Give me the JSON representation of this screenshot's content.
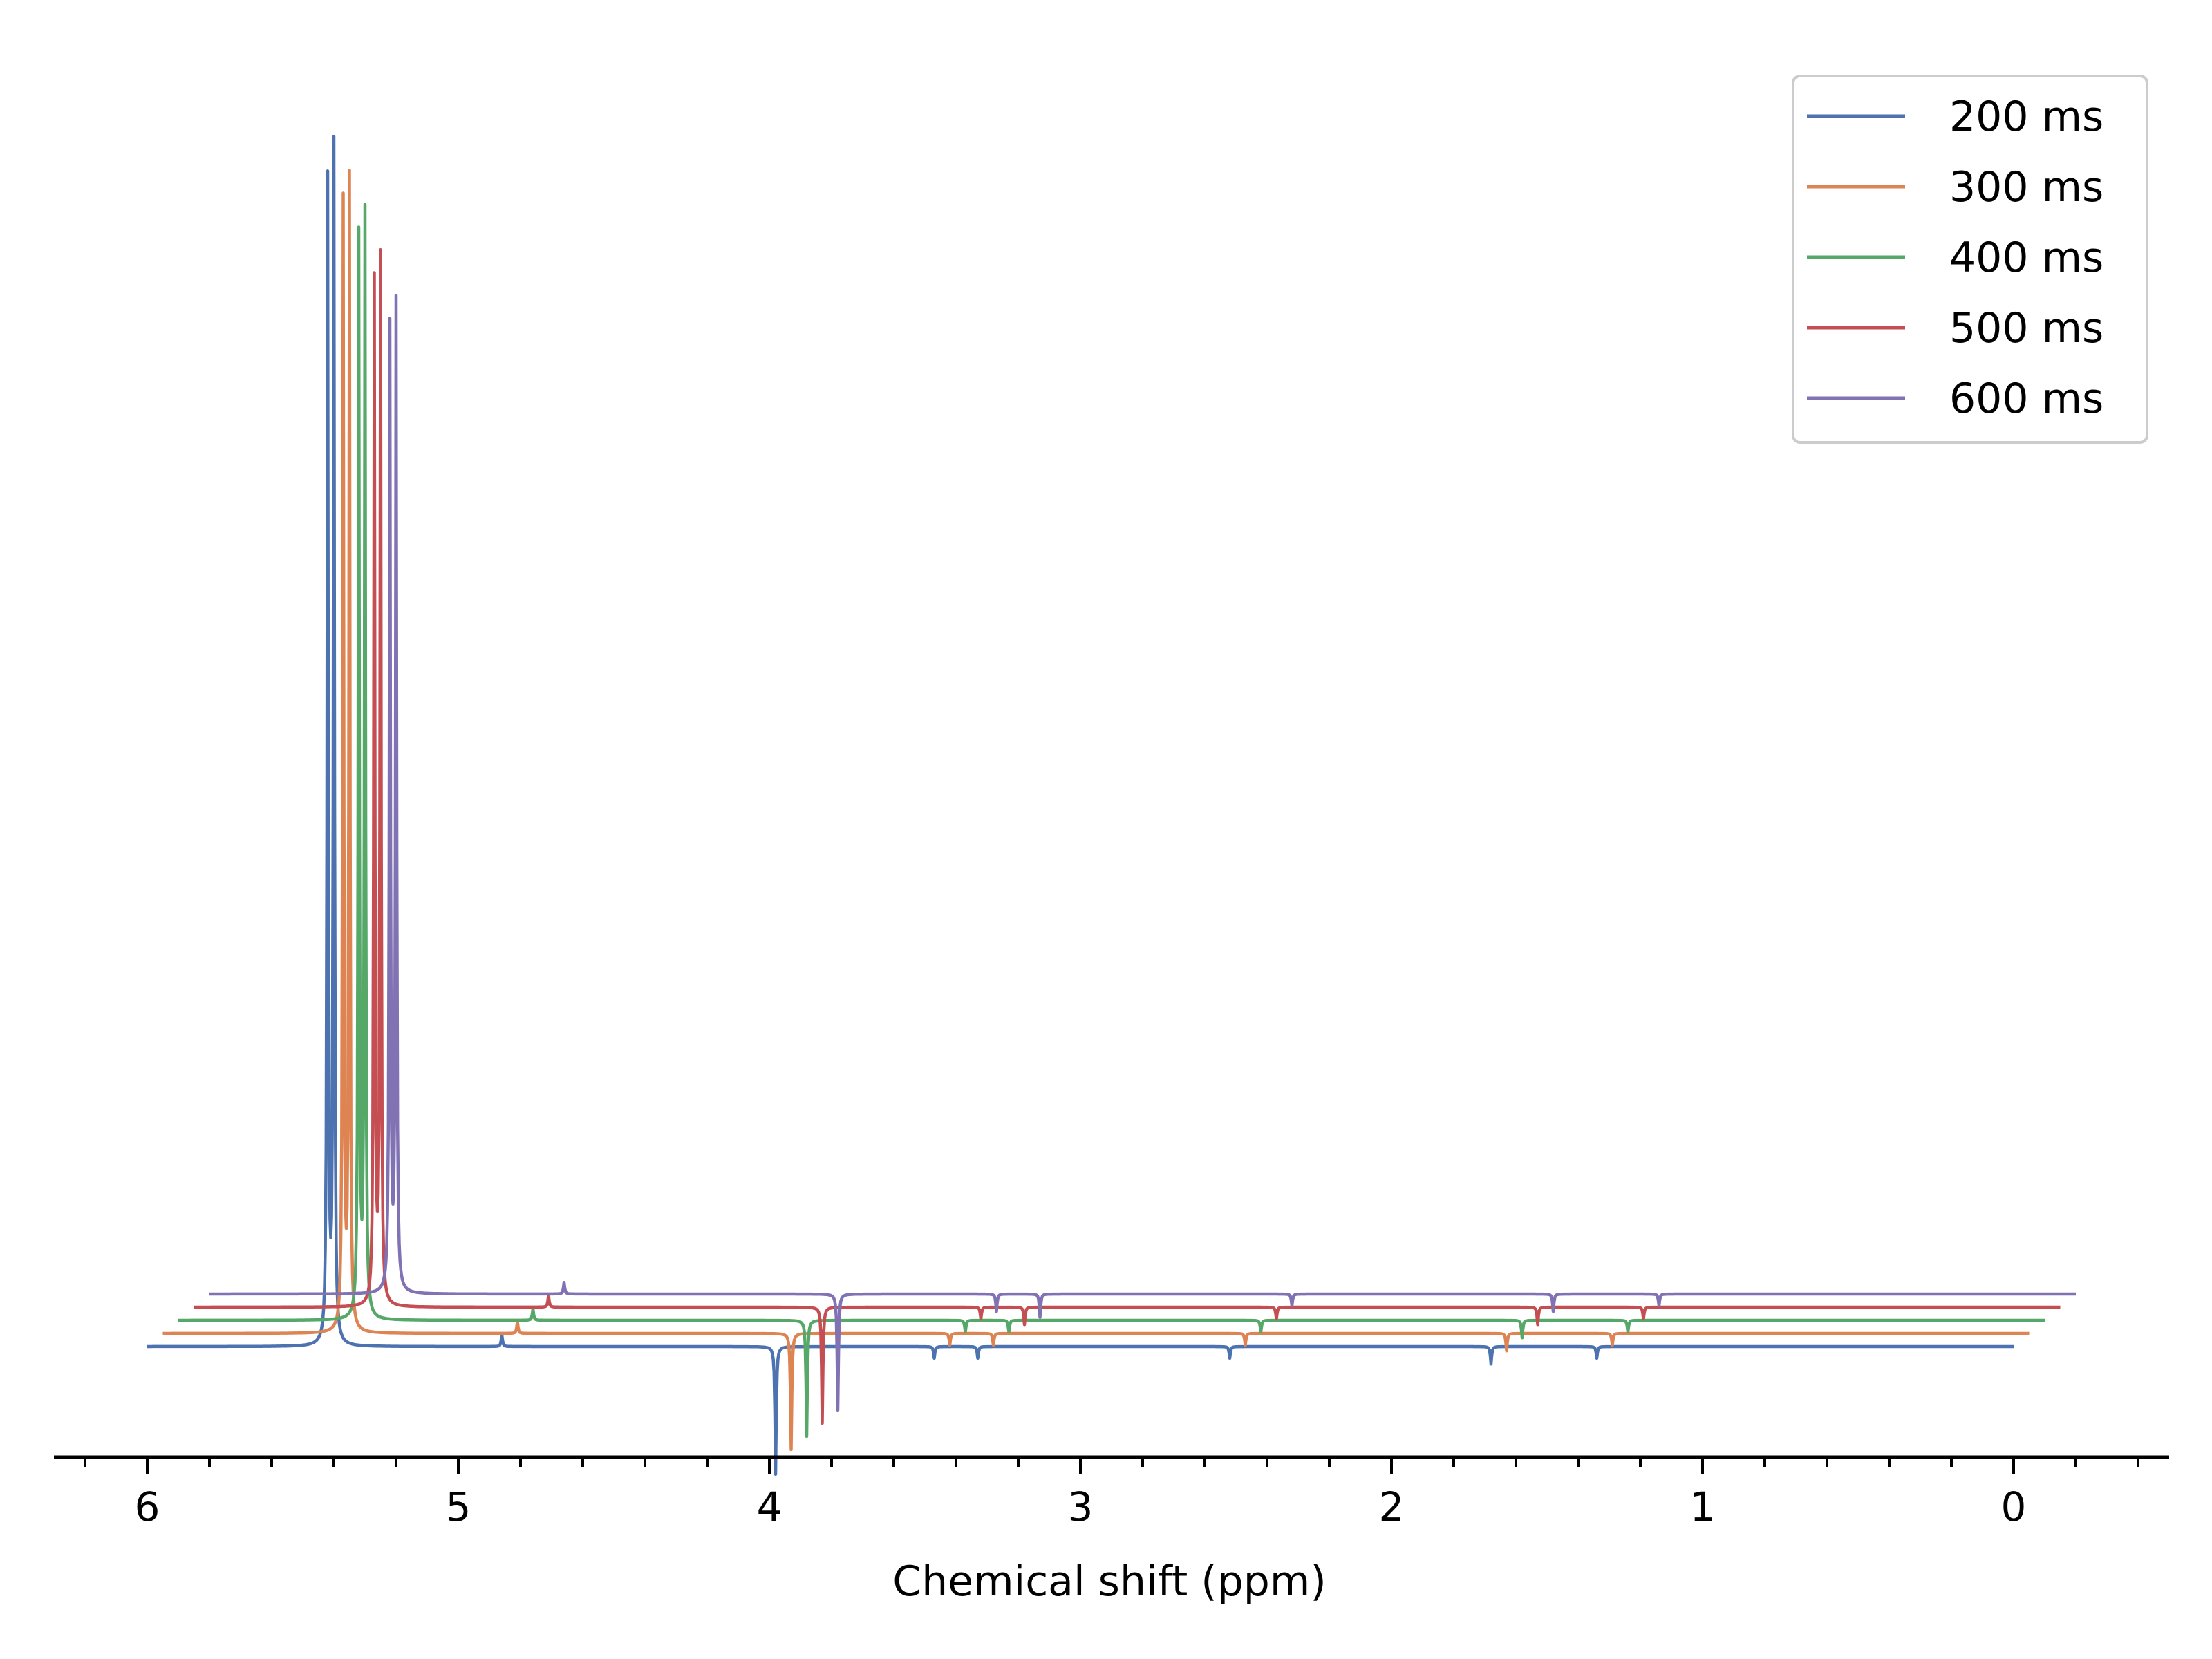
{
  "chart_data": {
    "type": "line",
    "title": "",
    "xlabel": "Chemical shift (ppm)",
    "ylabel": "",
    "xlim": [
      6.3,
      -0.5
    ],
    "x_reversed": true,
    "x_ticks": [
      6,
      5,
      4,
      3,
      2,
      1,
      0
    ],
    "x_tick_labels": [
      "6",
      "5",
      "4",
      "3",
      "2",
      "1",
      "0"
    ],
    "x_minor_tick_step": 0.2,
    "y_axis_visible": false,
    "grid": false,
    "legend_position": "top-right",
    "stack_offset_ppm": -0.05,
    "series": [
      {
        "name": "200 ms",
        "color": "#4c72b0",
        "x_range": [
          6.0,
          0.0
        ],
        "peaks": [
          {
            "ppm": 5.42,
            "height": 1.0
          },
          {
            "ppm": 5.4,
            "height": 1.03
          },
          {
            "ppm": 3.98,
            "height": -0.11
          },
          {
            "ppm": 4.86,
            "height": 0.01
          },
          {
            "ppm": 3.47,
            "height": -0.01
          },
          {
            "ppm": 3.33,
            "height": -0.01
          },
          {
            "ppm": 2.52,
            "height": -0.01
          },
          {
            "ppm": 1.68,
            "height": -0.015
          },
          {
            "ppm": 1.34,
            "height": -0.01
          }
        ]
      },
      {
        "name": "300 ms",
        "color": "#dd8452",
        "x_range": [
          5.95,
          -0.05
        ],
        "peaks": [
          {
            "ppm": 5.37,
            "height": 0.97
          },
          {
            "ppm": 5.35,
            "height": 0.99
          },
          {
            "ppm": 3.93,
            "height": -0.1
          },
          {
            "ppm": 4.81,
            "height": 0.01
          },
          {
            "ppm": 3.42,
            "height": -0.01
          },
          {
            "ppm": 3.28,
            "height": -0.01
          },
          {
            "ppm": 2.47,
            "height": -0.01
          },
          {
            "ppm": 1.63,
            "height": -0.015
          },
          {
            "ppm": 1.29,
            "height": -0.01
          }
        ]
      },
      {
        "name": "400 ms",
        "color": "#55a868",
        "x_range": [
          5.9,
          -0.1
        ],
        "peaks": [
          {
            "ppm": 5.32,
            "height": 0.93
          },
          {
            "ppm": 5.3,
            "height": 0.95
          },
          {
            "ppm": 3.88,
            "height": -0.1
          },
          {
            "ppm": 4.76,
            "height": 0.01
          },
          {
            "ppm": 3.37,
            "height": -0.01
          },
          {
            "ppm": 3.23,
            "height": -0.01
          },
          {
            "ppm": 2.42,
            "height": -0.01
          },
          {
            "ppm": 1.58,
            "height": -0.015
          },
          {
            "ppm": 1.24,
            "height": -0.01
          }
        ]
      },
      {
        "name": "500 ms",
        "color": "#c44e52",
        "x_range": [
          5.85,
          -0.15
        ],
        "peaks": [
          {
            "ppm": 5.27,
            "height": 0.88
          },
          {
            "ppm": 5.25,
            "height": 0.9
          },
          {
            "ppm": 3.83,
            "height": -0.1
          },
          {
            "ppm": 4.71,
            "height": 0.01
          },
          {
            "ppm": 3.32,
            "height": -0.01
          },
          {
            "ppm": 3.18,
            "height": -0.015
          },
          {
            "ppm": 2.37,
            "height": -0.01
          },
          {
            "ppm": 1.53,
            "height": -0.015
          },
          {
            "ppm": 1.19,
            "height": -0.01
          }
        ]
      },
      {
        "name": "600 ms",
        "color": "#8172b3",
        "x_range": [
          5.8,
          -0.2
        ],
        "peaks": [
          {
            "ppm": 5.22,
            "height": 0.83
          },
          {
            "ppm": 5.2,
            "height": 0.85
          },
          {
            "ppm": 3.78,
            "height": -0.1
          },
          {
            "ppm": 4.66,
            "height": 0.01
          },
          {
            "ppm": 3.27,
            "height": -0.015
          },
          {
            "ppm": 3.13,
            "height": -0.02
          },
          {
            "ppm": 2.32,
            "height": -0.01
          },
          {
            "ppm": 1.48,
            "height": -0.015
          },
          {
            "ppm": 1.14,
            "height": -0.01
          }
        ]
      }
    ]
  }
}
